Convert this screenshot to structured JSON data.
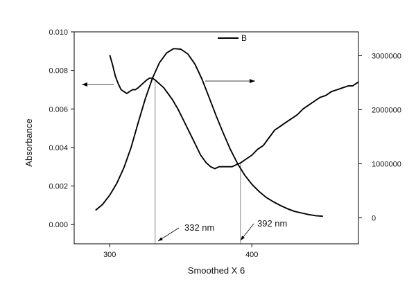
{
  "chart_data": {
    "type": "line",
    "xlabel": "Smoothed X 6",
    "ylabel": "Absorbance",
    "xlim": [
      275,
      475
    ],
    "ylim": [
      -0.001,
      0.01
    ],
    "y2lim": [
      -480000,
      3440000
    ],
    "x_ticks": [
      300,
      400
    ],
    "y_ticks": [
      0.0,
      0.002,
      0.004,
      0.006,
      0.008,
      0.01
    ],
    "y_tick_labels": [
      "0.000",
      "0.002",
      "0.004",
      "0.006",
      "0.008",
      "0.010"
    ],
    "y2_ticks": [
      0,
      1000000,
      2000000,
      3000000
    ],
    "y2_tick_labels": [
      "0",
      "1000000",
      "2000000",
      "3000000"
    ],
    "grid": false,
    "legend": {
      "placement": "top-center",
      "entries": [
        "B"
      ]
    },
    "series": [
      {
        "name": "B",
        "axis": "left",
        "color": "#000000",
        "points": [
          [
            300,
            0.0088
          ],
          [
            302,
            0.0083
          ],
          [
            304,
            0.0077
          ],
          [
            306,
            0.0073
          ],
          [
            308,
            0.007
          ],
          [
            310,
            0.0069
          ],
          [
            312,
            0.0068
          ],
          [
            314,
            0.0069
          ],
          [
            316,
            0.007
          ],
          [
            318,
            0.007
          ],
          [
            320,
            0.0071
          ],
          [
            323,
            0.0073
          ],
          [
            326,
            0.0075
          ],
          [
            328,
            0.0076
          ],
          [
            330,
            0.0076
          ],
          [
            332,
            0.0075
          ],
          [
            335,
            0.0073
          ],
          [
            338,
            0.0071
          ],
          [
            341,
            0.0068
          ],
          [
            344,
            0.0065
          ],
          [
            348,
            0.006
          ],
          [
            352,
            0.0054
          ],
          [
            356,
            0.0048
          ],
          [
            360,
            0.0042
          ],
          [
            364,
            0.0036
          ],
          [
            368,
            0.0032
          ],
          [
            371,
            0.003
          ],
          [
            374,
            0.0029
          ],
          [
            377,
            0.003
          ],
          [
            380,
            0.003
          ],
          [
            383,
            0.003
          ],
          [
            386,
            0.003
          ],
          [
            389,
            0.0031
          ],
          [
            392,
            0.0032
          ],
          [
            396,
            0.0034
          ],
          [
            400,
            0.0036
          ],
          [
            404,
            0.0039
          ],
          [
            408,
            0.0041
          ],
          [
            412,
            0.0045
          ],
          [
            416,
            0.0049
          ],
          [
            420,
            0.0051
          ],
          [
            424,
            0.0053
          ],
          [
            428,
            0.0055
          ],
          [
            432,
            0.0057
          ],
          [
            436,
            0.006
          ],
          [
            440,
            0.0062
          ],
          [
            444,
            0.0064
          ],
          [
            448,
            0.0066
          ],
          [
            452,
            0.0067
          ],
          [
            456,
            0.0069
          ],
          [
            460,
            0.007
          ],
          [
            464,
            0.0071
          ],
          [
            468,
            0.0072
          ],
          [
            471,
            0.0072
          ],
          [
            475,
            0.0074
          ]
        ]
      },
      {
        "axis": "right",
        "color": "#000000",
        "points": [
          [
            290,
            140000
          ],
          [
            295,
            250000
          ],
          [
            300,
            420000
          ],
          [
            305,
            640000
          ],
          [
            310,
            930000
          ],
          [
            315,
            1300000
          ],
          [
            320,
            1760000
          ],
          [
            325,
            2200000
          ],
          [
            330,
            2580000
          ],
          [
            335,
            2870000
          ],
          [
            340,
            3050000
          ],
          [
            345,
            3130000
          ],
          [
            350,
            3120000
          ],
          [
            355,
            3030000
          ],
          [
            360,
            2840000
          ],
          [
            365,
            2560000
          ],
          [
            370,
            2220000
          ],
          [
            375,
            1880000
          ],
          [
            380,
            1560000
          ],
          [
            385,
            1260000
          ],
          [
            390,
            1000000
          ],
          [
            395,
            790000
          ],
          [
            400,
            620000
          ],
          [
            405,
            490000
          ],
          [
            410,
            380000
          ],
          [
            415,
            300000
          ],
          [
            420,
            230000
          ],
          [
            425,
            170000
          ],
          [
            430,
            120000
          ],
          [
            435,
            90000
          ],
          [
            440,
            60000
          ],
          [
            445,
            40000
          ],
          [
            450,
            30000
          ]
        ]
      }
    ],
    "annotations": [
      {
        "text": "332 nm",
        "x": 332
      },
      {
        "text": "392 nm",
        "x": 392
      }
    ]
  }
}
